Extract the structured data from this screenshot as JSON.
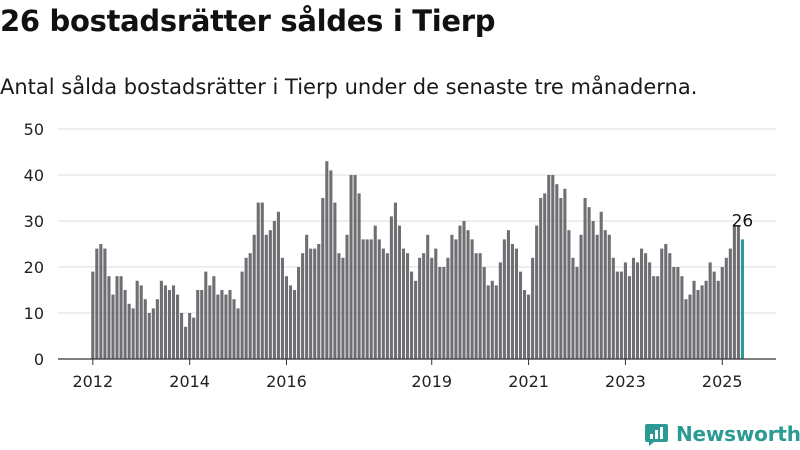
{
  "title": "26 bostadsrätter såldes i Tierp",
  "subtitle": "Antal sålda bostadsrätter i Tierp under de senaste tre månaderna.",
  "brand": "Newsworthy",
  "colors": {
    "bar": "#6f6e73",
    "highlight": "#2b9a94",
    "grid": "#dcdcdc",
    "axis": "#333333",
    "brand": "#2b9a94"
  },
  "chart_data": {
    "type": "bar",
    "x_start": "2012-01",
    "interval": "month",
    "ylim": [
      0,
      50
    ],
    "yticks": [
      0,
      10,
      20,
      30,
      40,
      50
    ],
    "xtick_labels": [
      "2012",
      "2014",
      "2016",
      "2019",
      "2021",
      "2023",
      "2025"
    ],
    "grid": true,
    "values": [
      19,
      24,
      25,
      24,
      18,
      14,
      18,
      18,
      15,
      12,
      11,
      17,
      16,
      13,
      10,
      11,
      13,
      17,
      16,
      15,
      16,
      14,
      10,
      7,
      10,
      9,
      15,
      15,
      19,
      16,
      18,
      14,
      15,
      14,
      15,
      13,
      11,
      19,
      22,
      23,
      27,
      34,
      34,
      27,
      28,
      30,
      32,
      22,
      18,
      16,
      15,
      20,
      23,
      27,
      24,
      24,
      25,
      35,
      43,
      41,
      34,
      23,
      22,
      27,
      40,
      40,
      36,
      26,
      26,
      26,
      29,
      26,
      24,
      23,
      31,
      34,
      29,
      24,
      23,
      19,
      17,
      22,
      23,
      27,
      22,
      24,
      20,
      20,
      22,
      27,
      26,
      29,
      30,
      28,
      26,
      23,
      23,
      20,
      16,
      17,
      16,
      21,
      26,
      28,
      25,
      24,
      19,
      15,
      14,
      22,
      29,
      35,
      36,
      40,
      40,
      38,
      35,
      37,
      28,
      22,
      20,
      27,
      35,
      33,
      30,
      27,
      32,
      28,
      27,
      22,
      19,
      19,
      21,
      18,
      22,
      21,
      24,
      23,
      21,
      18,
      18,
      24,
      25,
      23,
      20,
      20,
      18,
      13,
      14,
      17,
      15,
      16,
      17,
      21,
      19,
      17,
      20,
      22,
      24,
      29,
      29,
      26
    ],
    "highlight_last": true,
    "data_label": "26"
  }
}
